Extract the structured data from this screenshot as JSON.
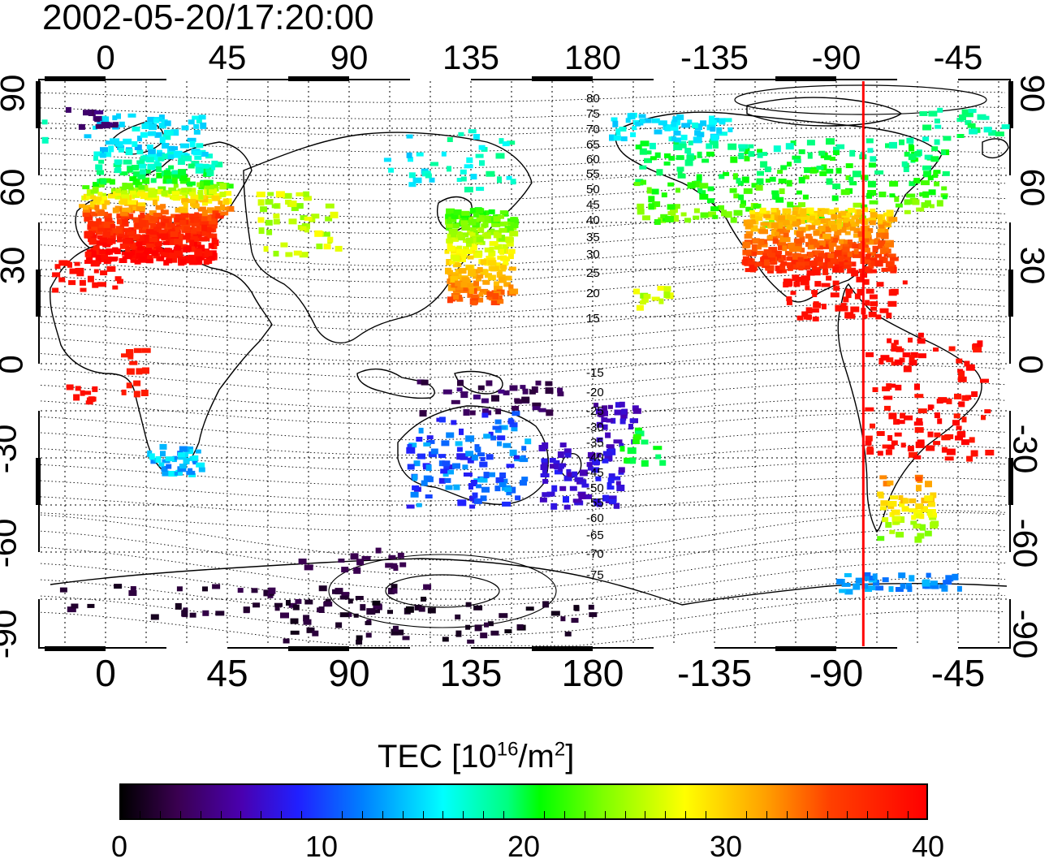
{
  "timestamp": "2002-05-20/17:20:00",
  "map": {
    "top_lon_ticks": [
      "0",
      "45",
      "90",
      "135",
      "180",
      "-135",
      "-90",
      "-45"
    ],
    "bottom_lon_ticks": [
      "0",
      "45",
      "90",
      "135",
      "180",
      "-135",
      "-90",
      "-45"
    ],
    "lat_ticks": [
      "90",
      "60",
      "30",
      "0",
      "-30",
      "-60",
      "-90"
    ],
    "contour_labels_north": [
      "80",
      "75",
      "70",
      "65",
      "60",
      "55",
      "50",
      "45",
      "40",
      "35",
      "30",
      "25",
      "20",
      "15"
    ],
    "contour_labels_south": [
      "-15",
      "-20",
      "-25",
      "-30",
      "-35",
      "-40",
      "-45",
      "-50",
      "-55",
      "-60",
      "-65",
      "-70",
      "-75"
    ],
    "terminator_lon": -80
  },
  "colorbar": {
    "title_prefix": "TEC  [10",
    "title_exp1": "16",
    "title_mid": "/m",
    "title_exp2": "2",
    "title_suffix": "]",
    "tick_labels": [
      "0",
      "10",
      "20",
      "30",
      "40"
    ],
    "min": 0,
    "max": 40
  },
  "colors": {
    "terminator": "#ff0000",
    "frame": "#000000"
  }
}
